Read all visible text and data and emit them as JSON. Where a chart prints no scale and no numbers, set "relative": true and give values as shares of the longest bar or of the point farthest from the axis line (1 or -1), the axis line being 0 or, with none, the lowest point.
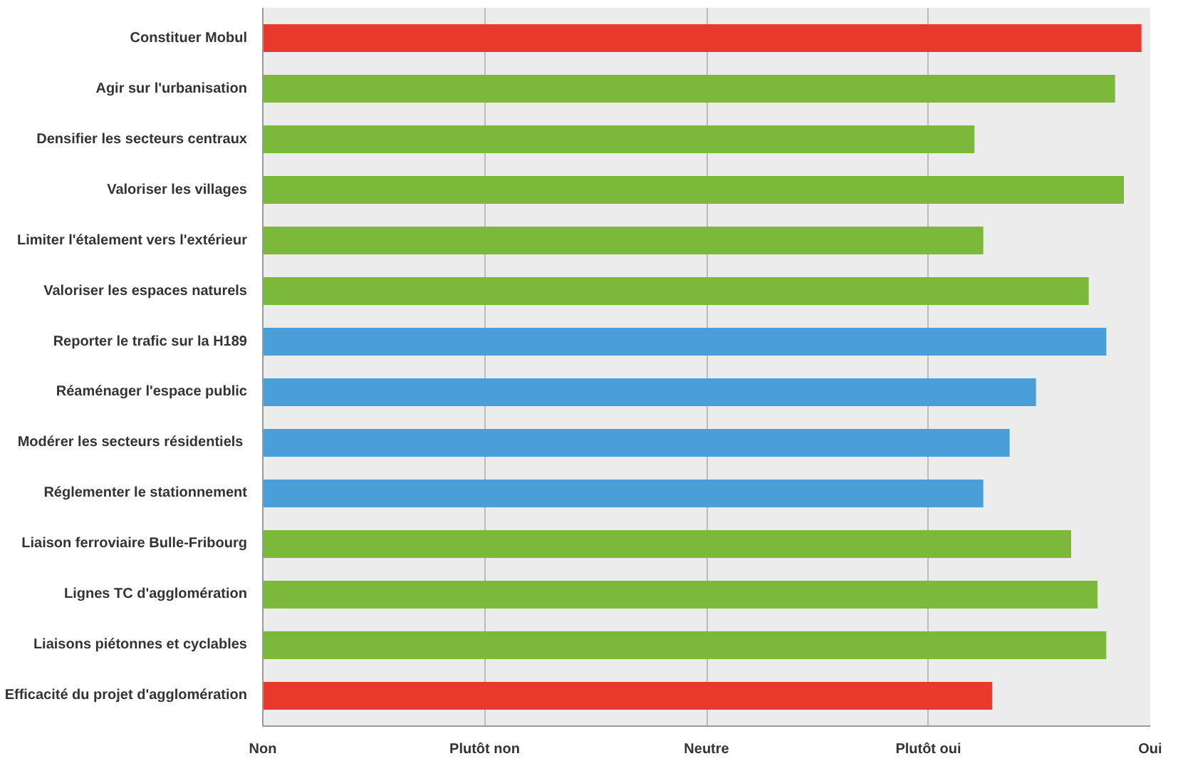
{
  "chart_data": {
    "type": "bar",
    "orientation": "horizontal",
    "relative": true,
    "categories": [
      "Constituer Mobul",
      "Agir sur l'urbanisation",
      "Densifier les secteurs centraux",
      "Valoriser les villages",
      "Limiter l'étalement vers l'extérieur",
      "Valoriser les espaces naturels",
      "Reporter le trafic sur la H189",
      "Réaménager l'espace public",
      "Modérer  les secteurs résidentiels",
      "Réglementer le stationnement",
      "Liaison ferroviaire Bulle-Fribourg",
      "Lignes TC d'agglomération",
      "Liaisons piétonnes et cyclables",
      "Efficacité du projet d'agglomération"
    ],
    "values": [
      1,
      0.97,
      0.81,
      0.98,
      0.82,
      0.94,
      0.96,
      0.88,
      0.85,
      0.82,
      0.92,
      0.95,
      0.96,
      0.83
    ],
    "colors": [
      "#e8392c",
      "#7cb83a",
      "#7cb83a",
      "#7cb83a",
      "#7cb83a",
      "#7cb83a",
      "#4a9fd8",
      "#4a9fd8",
      "#4a9fd8",
      "#4a9fd8",
      "#7cb83a",
      "#7cb83a",
      "#7cb83a",
      "#e8392c"
    ],
    "annotations": [
      "Non",
      "Plutôt non",
      "Neutre",
      "Plutôt oui",
      "Oui"
    ],
    "grid": "x"
  }
}
